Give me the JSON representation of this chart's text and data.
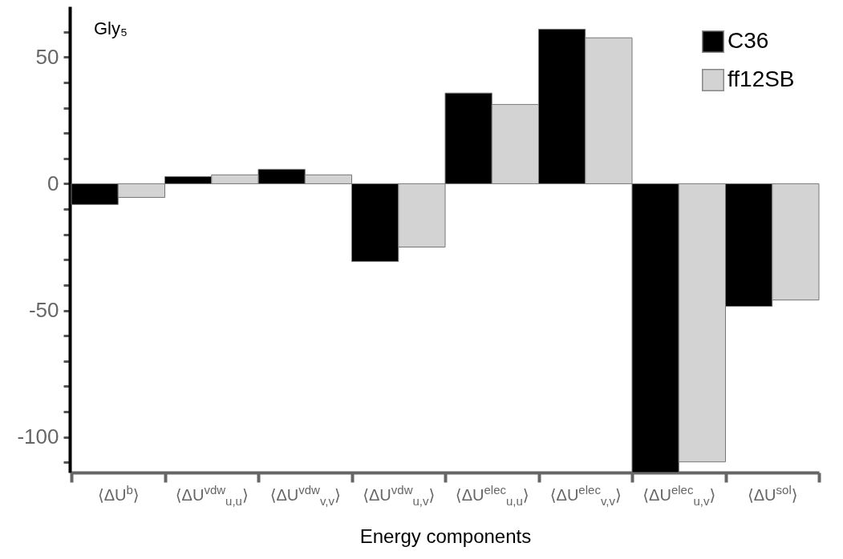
{
  "chart_data": {
    "type": "bar",
    "title": "Gly₅",
    "xlabel": "Energy components",
    "categories": [
      "⟨ΔU$^{b}$⟩",
      "⟨ΔU$^{vdw}$$_{u,u}$⟩",
      "⟨ΔU$^{vdw}$$_{v,v}$⟩",
      "⟨ΔU$^{vdw}$$_{u,v}$⟩",
      "⟨ΔU$^{elec}$$_{u,u}$⟩",
      "⟨ΔU$^{elec}$$_{v,v}$⟩",
      "⟨ΔU$^{elec}$$_{u,v}$⟩",
      "⟨ΔU$^{sol}$⟩"
    ],
    "series": [
      {
        "name": "C36",
        "color": "#000000",
        "values": [
          -8.2,
          2.8,
          5.7,
          -30.7,
          35.8,
          61,
          -114,
          -48.4
        ]
      },
      {
        "name": "ff12SB",
        "color": "#d3d3d3",
        "values": [
          -5.4,
          3.5,
          3.5,
          -25,
          31.3,
          57.6,
          -109.8,
          -45.9
        ]
      }
    ],
    "ylim": [
      -114,
      70
    ],
    "yticks": [
      {
        "value": -110,
        "label": null
      },
      -100,
      {
        "value": -90,
        "label": null
      },
      {
        "value": -80,
        "label": null
      },
      {
        "value": -70,
        "label": null
      },
      {
        "value": -60,
        "label": null
      },
      -50,
      {
        "value": -40,
        "label": null
      },
      {
        "value": -30,
        "label": null
      },
      {
        "value": -20,
        "label": null
      },
      {
        "value": -10,
        "label": null
      },
      0,
      {
        "value": 10,
        "label": null
      },
      {
        "value": 20,
        "label": null
      },
      {
        "value": 30,
        "label": null
      },
      {
        "value": 40,
        "label": null
      },
      50,
      {
        "value": 60,
        "label": null
      }
    ],
    "grid": false,
    "legend": "top right"
  }
}
